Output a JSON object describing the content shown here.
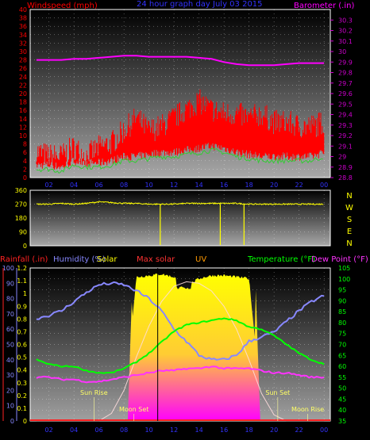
{
  "colors": {
    "wind": "#ff0000",
    "gust_avg": "#33cc33",
    "barometer": "#ff00ff",
    "title": "#3333ff",
    "direction": "#ffff00",
    "rain": "#ff2222",
    "humidity": "#8888ff",
    "solar": "#ffff00",
    "max_solar": "#ff3333",
    "uv": "#ff9900",
    "temperature": "#00ff00",
    "dew_point": "#ff33ff",
    "axis_right": "#cc00cc",
    "dir_letters": "#ffff00"
  },
  "chart_data": [
    {
      "type": "line",
      "title": "24 hour graph day   July 03 2015",
      "ylabel_left": "Windspeed (mph)",
      "ylabel_right": "Barometer (.in)",
      "x_ticks": [
        "02",
        "04",
        "06",
        "08",
        "10",
        "12",
        "14",
        "16",
        "18",
        "20",
        "22",
        "00"
      ],
      "y_left_ticks": [
        "0",
        "2",
        "4",
        "6",
        "8",
        "10",
        "12",
        "14",
        "16",
        "18",
        "20",
        "22",
        "24",
        "26",
        "28",
        "30",
        "32",
        "34",
        "36",
        "38",
        "40"
      ],
      "y_right_ticks": [
        "28.8",
        "28.9",
        "29",
        "29.1",
        "29.2",
        "29.3",
        "29.4",
        "29.5",
        "29.6",
        "29.7",
        "29.8",
        "29.9",
        "30",
        "30.1",
        "30.2",
        "30.3"
      ],
      "ylim_left": [
        0,
        40
      ],
      "ylim_right": [
        28.8,
        30.4
      ],
      "x": [
        1,
        2,
        3,
        4,
        5,
        6,
        7,
        8,
        9,
        10,
        11,
        12,
        13,
        14,
        15,
        16,
        17,
        18,
        19,
        20,
        21,
        22,
        23,
        24
      ],
      "series": [
        {
          "name": "wind_gust",
          "values": [
            5,
            4,
            4,
            6,
            4,
            6,
            7,
            10,
            13,
            10,
            11,
            13,
            15,
            17,
            15,
            14,
            14,
            13,
            14,
            12,
            12,
            11,
            11,
            12
          ]
        },
        {
          "name": "wind_avg",
          "values": [
            2,
            2,
            1.5,
            3,
            2.5,
            2.5,
            3,
            4,
            4,
            4.5,
            5,
            5,
            5.5,
            6,
            6.5,
            6,
            5,
            4.5,
            4,
            4,
            4,
            4,
            4,
            5
          ]
        },
        {
          "name": "barometer",
          "values": [
            29.92,
            29.92,
            29.92,
            29.93,
            29.93,
            29.94,
            29.95,
            29.96,
            29.96,
            29.95,
            29.95,
            29.95,
            29.95,
            29.94,
            29.93,
            29.9,
            29.88,
            29.87,
            29.87,
            29.87,
            29.88,
            29.89,
            29.89,
            29.89
          ]
        }
      ]
    },
    {
      "type": "scatter",
      "ylabel_left_ticks": [
        "0",
        "90",
        "180",
        "270",
        "360"
      ],
      "ylim": [
        0,
        360
      ],
      "direction_letters": [
        "N",
        "W",
        "S",
        "E",
        "N"
      ],
      "x": [
        1,
        2,
        3,
        4,
        5,
        6,
        7,
        8,
        9,
        10,
        11,
        12,
        13,
        14,
        15,
        16,
        17,
        18,
        19,
        20,
        21,
        22,
        23,
        24
      ],
      "series": [
        {
          "name": "wind_direction",
          "values": [
            270,
            270,
            275,
            270,
            275,
            285,
            280,
            275,
            275,
            270,
            270,
            270,
            275,
            275,
            275,
            275,
            275,
            270,
            270,
            270,
            270,
            270,
            270,
            270
          ]
        }
      ]
    },
    {
      "type": "area",
      "labels": {
        "rain": "Rainfall (.in)",
        "humidity": "Humidity (%)",
        "solar": "Solar",
        "max_solar": "Max solar",
        "uv": "UV",
        "temperature": "Temperature (°F)",
        "dew_point": "Dew Point (°F)"
      },
      "x_ticks": [
        "02",
        "04",
        "06",
        "08",
        "10",
        "12",
        "14",
        "16",
        "18",
        "20",
        "22",
        "00"
      ],
      "y_rain_ticks": [
        "0",
        "0.1",
        "0.2",
        "0.3",
        "0.4",
        "0.5",
        "0.6",
        "0.7",
        "0.8",
        "0.9",
        "1",
        "1.1",
        "1.2"
      ],
      "y_hum_ticks": [
        "0",
        "10",
        "20",
        "30",
        "40",
        "50",
        "60",
        "70",
        "80",
        "90",
        "100"
      ],
      "y_temp_ticks": [
        "35",
        "40",
        "45",
        "50",
        "55",
        "60",
        "65",
        "70",
        "75",
        "80",
        "85",
        "90",
        "95",
        "100",
        "105"
      ],
      "ylim_rain": [
        0,
        1.2
      ],
      "ylim_humidity": [
        0,
        100
      ],
      "ylim_temp": [
        35,
        105
      ],
      "annotations": [
        {
          "text": "Sun Rise",
          "x": 5.6
        },
        {
          "text": "Moon Set",
          "x": 8.8
        },
        {
          "text": "Sun Set",
          "x": 20.3
        },
        {
          "text": "Moon Rise",
          "x": 22.7
        }
      ],
      "x": [
        1,
        2,
        3,
        4,
        5,
        6,
        7,
        8,
        9,
        10,
        11,
        12,
        13,
        14,
        15,
        16,
        17,
        18,
        19,
        20,
        21,
        22,
        23,
        24
      ],
      "series": [
        {
          "name": "humidity",
          "values": [
            67,
            69,
            72,
            78,
            84,
            89,
            90,
            89,
            85,
            80,
            72,
            60,
            52,
            43,
            40,
            40,
            43,
            52,
            55,
            58,
            65,
            72,
            78,
            82
          ]
        },
        {
          "name": "temperature",
          "values": [
            63,
            61,
            60,
            60,
            58,
            57,
            57,
            59,
            62,
            66,
            71,
            76,
            79,
            80,
            81,
            82,
            81,
            78,
            77,
            74,
            70,
            66,
            63,
            61
          ]
        },
        {
          "name": "dew_point",
          "values": [
            55,
            55,
            54,
            54,
            53,
            53,
            54,
            55,
            56,
            57,
            58,
            58,
            59,
            59,
            60,
            59,
            59,
            59,
            58,
            57,
            57,
            56,
            55,
            55
          ]
        },
        {
          "name": "solar_pct",
          "values": [
            0,
            0,
            0,
            0,
            0,
            0,
            0,
            0.1,
            0.96,
            0.97,
            0.98,
            0.96,
            0.9,
            0.95,
            0.97,
            0.97,
            0.96,
            0.95,
            0.1,
            0,
            0,
            0,
            0,
            0
          ]
        },
        {
          "name": "max_solar_pct",
          "values": [
            0,
            0,
            0,
            0,
            0,
            0,
            0.05,
            0.2,
            0.42,
            0.62,
            0.78,
            0.88,
            0.91,
            0.9,
            0.85,
            0.75,
            0.6,
            0.4,
            0.18,
            0.04,
            0,
            0,
            0,
            0
          ]
        }
      ]
    }
  ]
}
